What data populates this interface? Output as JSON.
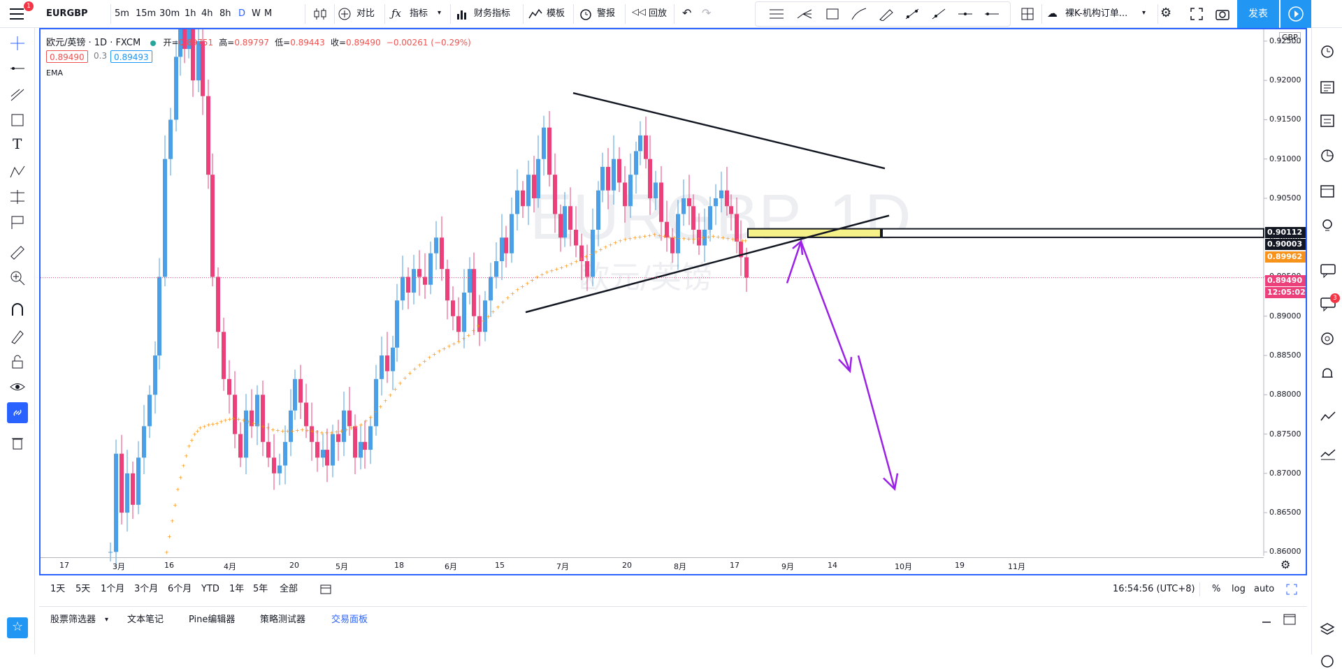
{
  "topbar": {
    "notification_count": "1",
    "symbol": "EURGBP",
    "intervals": [
      "5m",
      "15m",
      "30m",
      "1h",
      "4h",
      "8h",
      "D",
      "W",
      "M"
    ],
    "active_interval": "D",
    "compare_label": "对比",
    "indicators_label": "指标",
    "financials_label": "财务指标",
    "templates_label": "模板",
    "alert_label": "警报",
    "replay_label": "回放",
    "layout_name": "裸K-机构订单...",
    "publish_label": "发表"
  },
  "legend": {
    "title": "欧元/英镑 · 1D · FXCM",
    "open_label": "开=",
    "open": "0.89751",
    "high_label": "高=",
    "high": "0.89797",
    "low_label": "低=",
    "low": "0.89443",
    "close_label": "收=",
    "close": "0.89490",
    "change": "−0.00261 (−0.29%)",
    "bid": "0.89490",
    "spread": "0.3",
    "ask": "0.89493",
    "indicator": "EMA"
  },
  "watermark": {
    "symbol": "EURGBP, 1D",
    "name": "欧元/英镑"
  },
  "price_axis": {
    "currency": "GBP",
    "ticks": [
      "0.92500",
      "0.92000",
      "0.91500",
      "0.91000",
      "0.90500",
      "0.90000",
      "0.89500",
      "0.89000",
      "0.88500",
      "0.88000",
      "0.87500",
      "0.87000",
      "0.86500",
      "0.86000"
    ]
  },
  "price_labels": {
    "zone_top": "0.90112",
    "zone_bottom": "0.90003",
    "ema": "0.89962",
    "last": "0.89490",
    "countdown": "12:05:02"
  },
  "time_axis": {
    "labels": [
      "17",
      "3月",
      "16",
      "4月",
      "20",
      "5月",
      "18",
      "6月",
      "15",
      "7月",
      "20",
      "8月",
      "17",
      "9月",
      "14",
      "10月",
      "19",
      "11月"
    ]
  },
  "colors": {
    "up": "#4a9fe6",
    "down": "#ec407a",
    "ema": "#f7931a",
    "accent": "#2962ff",
    "arrow": "#9b20e6",
    "zone": "#f7f18a"
  },
  "chart_data": {
    "type": "candlestick",
    "title": "欧元/英镑 · 1D · FXCM",
    "ylim": [
      0.8595,
      0.9265
    ],
    "series": [
      {
        "name": "EURGBP",
        "values": []
      },
      {
        "name": "EMA",
        "values": []
      }
    ]
  },
  "bottombar": {
    "ranges": [
      "1天",
      "5天",
      "1个月",
      "3个月",
      "6个月",
      "YTD",
      "1年",
      "5年",
      "全部"
    ],
    "clock": "16:54:56 (UTC+8)",
    "percent": "%",
    "log": "log",
    "auto": "auto"
  },
  "panel": {
    "tabs": [
      "股票筛选器",
      "文本笔记",
      "Pine编辑器",
      "策略测试器",
      "交易面板"
    ],
    "active_tab": "交易面板"
  },
  "rightbar": {
    "chat_badge": "3"
  }
}
